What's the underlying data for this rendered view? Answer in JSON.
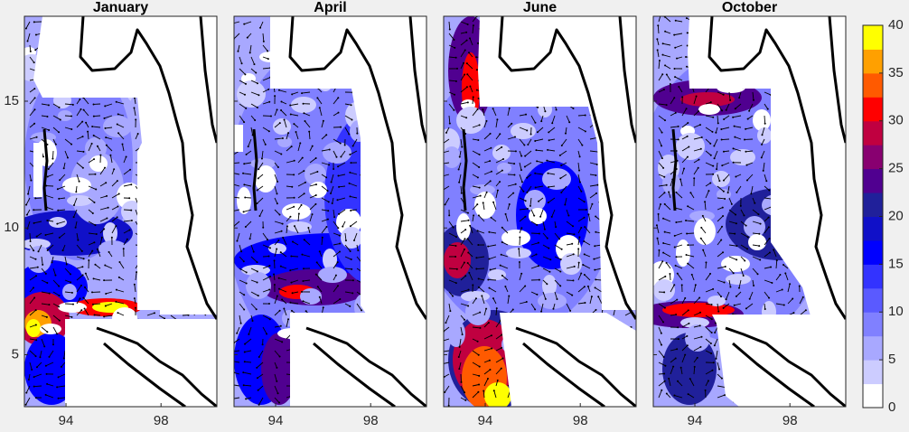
{
  "chart_data": {
    "type": "contour_quiver",
    "panels": [
      {
        "title": "January"
      },
      {
        "title": "April"
      },
      {
        "title": "June"
      },
      {
        "title": "October"
      }
    ],
    "xlim": [
      92.25,
      100.35
    ],
    "xticks": [
      94,
      98
    ],
    "ylim": [
      2.95,
      18.35
    ],
    "yticks": [
      5,
      10,
      15
    ],
    "colorbar": {
      "lim": [
        0,
        40
      ],
      "ticks": [
        0,
        5,
        10,
        15,
        20,
        25,
        30,
        35,
        40
      ],
      "colors": [
        "#ffffff",
        "#ccccff",
        "#a8a8ff",
        "#8080ff",
        "#5a5aff",
        "#3333ff",
        "#0000ff",
        "#1010c8",
        "#20209a",
        "#500090",
        "#880070",
        "#c00040",
        "#ff0000",
        "#ff5a00",
        "#ffa000",
        "#ffff00"
      ]
    }
  }
}
